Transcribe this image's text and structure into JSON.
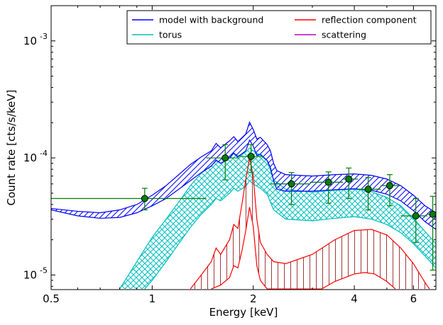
{
  "chart_data": {
    "type": "line",
    "xlabel": "Energy [keV]",
    "ylabel": "Count rate [cts/s/keV]",
    "xscale": "log",
    "yscale": "log",
    "xlim": [
      0.5,
      7.0
    ],
    "ylim": [
      7.5e-06,
      0.002
    ],
    "xticks": [
      {
        "value": 0.5,
        "label": "0.5"
      },
      {
        "value": 1,
        "label": "1"
      },
      {
        "value": 2,
        "label": "2"
      },
      {
        "value": 4,
        "label": "4"
      },
      {
        "value": 6,
        "label": "6"
      }
    ],
    "yticks": [
      {
        "value": 1e-05,
        "base": "10",
        "exp": "-5"
      },
      {
        "value": 0.0001,
        "base": "10",
        "exp": "-4"
      },
      {
        "value": 0.001,
        "base": "10",
        "exp": "-3"
      }
    ],
    "legend": {
      "position": "top-right",
      "columns": 2,
      "entries": [
        {
          "label": "model with background",
          "color": "#0000ff"
        },
        {
          "label": "reflection component",
          "color": "#ff0000"
        },
        {
          "label": "torus",
          "color": "#00bfbf"
        },
        {
          "label": "scattering",
          "color": "#bf00bf"
        }
      ]
    },
    "series": [
      {
        "name": "model with background",
        "color": "#0000ff",
        "hatch": "diagonal",
        "upper": [
          [
            0.5,
            3.7e-05
          ],
          [
            0.6,
            3.5e-05
          ],
          [
            0.7,
            3.4e-05
          ],
          [
            0.8,
            3.6e-05
          ],
          [
            0.9,
            4e-05
          ],
          [
            1.0,
            4.8e-05
          ],
          [
            1.1,
            5.8e-05
          ],
          [
            1.2,
            7.2e-05
          ],
          [
            1.3,
            8.8e-05
          ],
          [
            1.4,
            0.000102
          ],
          [
            1.5,
            0.000115
          ],
          [
            1.55,
            0.000133
          ],
          [
            1.6,
            0.000122
          ],
          [
            1.7,
            0.00014
          ],
          [
            1.75,
            0.000152
          ],
          [
            1.8,
            0.000138
          ],
          [
            1.9,
            0.00016
          ],
          [
            1.95,
            0.000202
          ],
          [
            2.0,
            0.000175
          ],
          [
            2.05,
            0.000145
          ],
          [
            2.1,
            0.00015
          ],
          [
            2.2,
            0.00013
          ],
          [
            2.25,
            0.000115
          ],
          [
            2.3,
            9e-05
          ],
          [
            2.35,
            7.8e-05
          ],
          [
            2.5,
            7.2e-05
          ],
          [
            3.0,
            7e-05
          ],
          [
            3.5,
            7.2e-05
          ],
          [
            4.0,
            7.3e-05
          ],
          [
            4.5,
            7.1e-05
          ],
          [
            5.0,
            6.6e-05
          ],
          [
            5.5,
            5.8e-05
          ],
          [
            6.0,
            4.8e-05
          ],
          [
            6.5,
            3.9e-05
          ],
          [
            7.0,
            3.4e-05
          ]
        ],
        "lower": [
          [
            0.5,
            3.6e-05
          ],
          [
            0.6,
            3.2e-05
          ],
          [
            0.7,
            3.05e-05
          ],
          [
            0.8,
            3.1e-05
          ],
          [
            0.9,
            3.4e-05
          ],
          [
            1.0,
            3.9e-05
          ],
          [
            1.1,
            4.5e-05
          ],
          [
            1.2,
            5.4e-05
          ],
          [
            1.3,
            6.4e-05
          ],
          [
            1.4,
            7.5e-05
          ],
          [
            1.5,
            8.5e-05
          ],
          [
            1.55,
            9.6e-05
          ],
          [
            1.6,
            9e-05
          ],
          [
            1.7,
            0.0001
          ],
          [
            1.75,
            0.00011
          ],
          [
            1.8,
            0.000102
          ],
          [
            1.9,
            0.000115
          ],
          [
            1.95,
            0.000142
          ],
          [
            2.0,
            0.000126
          ],
          [
            2.05,
            0.000105
          ],
          [
            2.1,
            0.000108
          ],
          [
            2.2,
            9.5e-05
          ],
          [
            2.25,
            8.3e-05
          ],
          [
            2.3,
            6.4e-05
          ],
          [
            2.35,
            5.4e-05
          ],
          [
            2.5,
            5.2e-05
          ],
          [
            3.0,
            5.2e-05
          ],
          [
            3.5,
            5.35e-05
          ],
          [
            4.0,
            5.45e-05
          ],
          [
            4.5,
            5.3e-05
          ],
          [
            5.0,
            4.9e-05
          ],
          [
            5.5,
            4.3e-05
          ],
          [
            6.0,
            3.55e-05
          ],
          [
            6.5,
            2.85e-05
          ],
          [
            7.0,
            2.45e-05
          ]
        ]
      },
      {
        "name": "torus",
        "color": "#00bfbf",
        "hatch": "cross",
        "upper": [
          [
            0.8,
            7.6e-06
          ],
          [
            0.85,
            1e-05
          ],
          [
            0.9,
            1.3e-05
          ],
          [
            1.0,
            2.1e-05
          ],
          [
            1.1,
            3e-05
          ],
          [
            1.2,
            4.2e-05
          ],
          [
            1.3,
            5.8e-05
          ],
          [
            1.4,
            7.4e-05
          ],
          [
            1.5,
            8.6e-05
          ],
          [
            1.55,
            9.4e-05
          ],
          [
            1.6,
            9e-05
          ],
          [
            1.7,
            0.0001
          ],
          [
            1.75,
            0.00011
          ],
          [
            1.8,
            0.000104
          ],
          [
            1.9,
            0.000112
          ],
          [
            1.95,
            0.000122
          ],
          [
            2.0,
            0.000115
          ],
          [
            2.1,
            0.000105
          ],
          [
            2.2,
            9.5e-05
          ],
          [
            2.3,
            6.5e-05
          ],
          [
            2.5,
            5.4e-05
          ],
          [
            3.0,
            5.1e-05
          ],
          [
            3.5,
            5.3e-05
          ],
          [
            4.0,
            5.4e-05
          ],
          [
            4.5,
            5.15e-05
          ],
          [
            5.0,
            4.6e-05
          ],
          [
            5.5,
            3.9e-05
          ],
          [
            6.0,
            3.05e-05
          ],
          [
            6.5,
            2.35e-05
          ],
          [
            7.0,
            1.85e-05
          ]
        ],
        "lower": [
          [
            0.95,
            7.6e-06
          ],
          [
            1.0,
            9e-06
          ],
          [
            1.1,
            1.3e-05
          ],
          [
            1.2,
            1.85e-05
          ],
          [
            1.3,
            2.55e-05
          ],
          [
            1.4,
            3.3e-05
          ],
          [
            1.5,
            4e-05
          ],
          [
            1.55,
            4.5e-05
          ],
          [
            1.6,
            4.3e-05
          ],
          [
            1.7,
            5e-05
          ],
          [
            1.75,
            5.5e-05
          ],
          [
            1.8,
            5.2e-05
          ],
          [
            1.9,
            5.7e-05
          ],
          [
            1.95,
            6.4e-05
          ],
          [
            2.0,
            6e-05
          ],
          [
            2.1,
            5.5e-05
          ],
          [
            2.2,
            4.9e-05
          ],
          [
            2.3,
            3.6e-05
          ],
          [
            2.5,
            3e-05
          ],
          [
            3.0,
            2.9e-05
          ],
          [
            3.5,
            3.05e-05
          ],
          [
            4.0,
            3.15e-05
          ],
          [
            4.5,
            3e-05
          ],
          [
            5.0,
            2.7e-05
          ],
          [
            5.5,
            2.3e-05
          ],
          [
            6.0,
            1.85e-05
          ],
          [
            6.5,
            1.45e-05
          ],
          [
            7.0,
            1.15e-05
          ]
        ]
      },
      {
        "name": "reflection component",
        "color": "#ff0000",
        "hatch": "vertical",
        "upper": [
          [
            1.3,
            7.6e-06
          ],
          [
            1.4,
            1e-05
          ],
          [
            1.5,
            1.3e-05
          ],
          [
            1.55,
            1.7e-05
          ],
          [
            1.6,
            1.5e-05
          ],
          [
            1.7,
            2e-05
          ],
          [
            1.75,
            2.7e-05
          ],
          [
            1.8,
            2.5e-05
          ],
          [
            1.85,
            4e-05
          ],
          [
            1.9,
            6.5e-05
          ],
          [
            1.95,
            0.0001
          ],
          [
            2.0,
            7e-05
          ],
          [
            2.05,
            3e-05
          ],
          [
            2.1,
            1.9e-05
          ],
          [
            2.2,
            1.5e-05
          ],
          [
            2.3,
            1.3e-05
          ],
          [
            2.5,
            1.25e-05
          ],
          [
            3.0,
            1.5e-05
          ],
          [
            3.5,
            2e-05
          ],
          [
            4.0,
            2.4e-05
          ],
          [
            4.5,
            2.45e-05
          ],
          [
            5.0,
            2.2e-05
          ],
          [
            5.5,
            1.7e-05
          ],
          [
            6.0,
            1.25e-05
          ],
          [
            6.5,
            8.6e-06
          ],
          [
            6.7,
            7.6e-06
          ]
        ],
        "lower": [
          [
            1.5,
            7.6e-06
          ],
          [
            1.6,
            8.2e-06
          ],
          [
            1.7,
            9.5e-06
          ],
          [
            1.75,
            1.2e-05
          ],
          [
            1.8,
            1.15e-05
          ],
          [
            1.85,
            1.6e-05
          ],
          [
            1.9,
            2.4e-05
          ],
          [
            1.95,
            3.8e-05
          ],
          [
            2.0,
            2.6e-05
          ],
          [
            2.05,
            1.2e-05
          ],
          [
            2.1,
            9e-06
          ],
          [
            2.2,
            7.6e-06
          ],
          [
            3.2,
            7.6e-06
          ],
          [
            3.5,
            8.8e-06
          ],
          [
            4.0,
            1.02e-05
          ],
          [
            4.3,
            1.05e-05
          ],
          [
            4.6,
            1.02e-05
          ],
          [
            5.0,
            8.8e-06
          ],
          [
            5.3,
            7.6e-06
          ]
        ]
      },
      {
        "name": "data",
        "color": "#008000",
        "points": [
          {
            "x": 0.95,
            "y": 4.5e-05,
            "xlo": 0.5,
            "xhi": 1.45,
            "ylo": 3.6e-05,
            "yhi": 5.5e-05
          },
          {
            "x": 1.65,
            "y": 0.0001,
            "xlo": 1.45,
            "xhi": 1.82,
            "ylo": 6.5e-05,
            "yhi": 0.00013
          },
          {
            "x": 1.97,
            "y": 0.000103,
            "xlo": 1.82,
            "xhi": 2.15,
            "ylo": 7.5e-05,
            "yhi": 0.00013
          },
          {
            "x": 2.6,
            "y": 6e-05,
            "xlo": 2.25,
            "xhi": 2.95,
            "ylo": 4e-05,
            "yhi": 7.5e-05
          },
          {
            "x": 3.35,
            "y": 6.2e-05,
            "xlo": 2.95,
            "xhi": 3.7,
            "ylo": 4.1e-05,
            "yhi": 7.6e-05
          },
          {
            "x": 3.85,
            "y": 6.6e-05,
            "xlo": 3.7,
            "xhi": 4.1,
            "ylo": 4.5e-05,
            "yhi": 8.2e-05
          },
          {
            "x": 4.4,
            "y": 5.4e-05,
            "xlo": 4.1,
            "xhi": 4.8,
            "ylo": 3.6e-05,
            "yhi": 6.8e-05
          },
          {
            "x": 5.1,
            "y": 5.8e-05,
            "xlo": 4.8,
            "xhi": 5.5,
            "ylo": 3.9e-05,
            "yhi": 7.2e-05
          },
          {
            "x": 6.1,
            "y": 3.2e-05,
            "xlo": 5.5,
            "xhi": 6.6,
            "ylo": 1.9e-05,
            "yhi": 4.5e-05
          },
          {
            "x": 6.85,
            "y": 3.3e-05,
            "xlo": 6.6,
            "xhi": 7.0,
            "ylo": 1.1e-05,
            "yhi": 4.7e-05
          }
        ]
      }
    ]
  }
}
